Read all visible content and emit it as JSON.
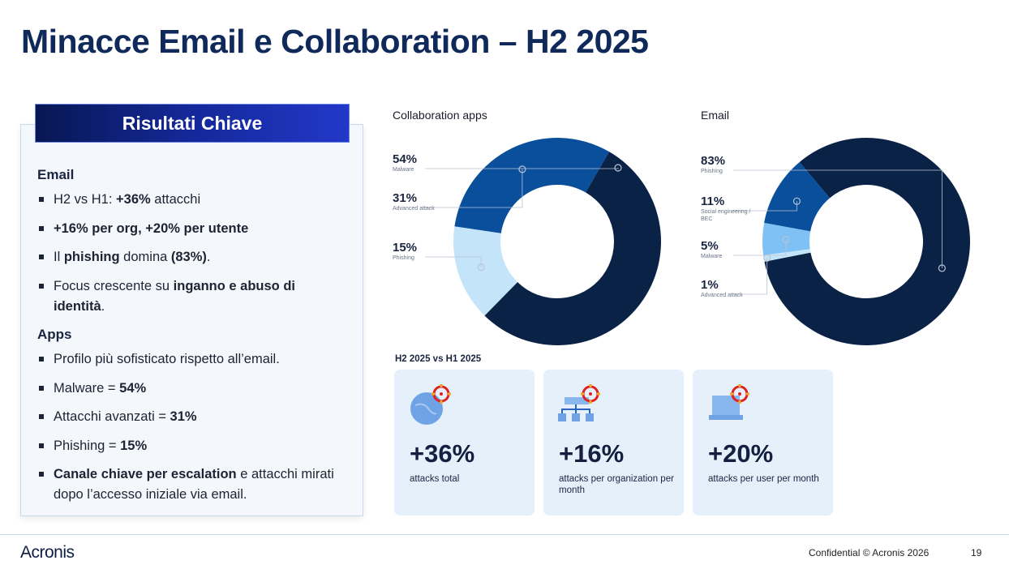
{
  "title": "Minacce Email e Collaboration – H2 2025",
  "panel": {
    "header": "Risultati Chiave",
    "sections": [
      {
        "heading": "Email",
        "items": [
          [
            [
              "H2 vs H1: ",
              false
            ],
            [
              "+36%",
              true
            ],
            [
              " attacchi",
              false
            ]
          ],
          [
            [
              "+16% per org, +20% per utente",
              true
            ]
          ],
          [
            [
              "Il ",
              false
            ],
            [
              "phishing",
              true
            ],
            [
              " domina ",
              false
            ],
            [
              "(83%)",
              true
            ],
            [
              ".",
              false
            ]
          ],
          [
            [
              "Focus crescente su ",
              false
            ],
            [
              "inganno e abuso di identità",
              true
            ],
            [
              ".",
              false
            ]
          ]
        ]
      },
      {
        "heading": "Apps",
        "items": [
          [
            [
              "Profilo più sofisticato rispetto all’email.",
              false
            ]
          ],
          [
            [
              "Malware = ",
              false
            ],
            [
              "54%",
              true
            ]
          ],
          [
            [
              "Attacchi avanzati = ",
              false
            ],
            [
              "31%",
              true
            ]
          ],
          [
            [
              "Phishing = ",
              false
            ],
            [
              "15%",
              true
            ]
          ],
          [
            [
              "Canale chiave per escalation",
              true
            ],
            [
              " e attacchi mirati dopo l’accesso iniziale via email.",
              false
            ]
          ]
        ]
      }
    ]
  },
  "chart_data": [
    {
      "type": "pie",
      "title": "Collaboration apps",
      "donut": true,
      "slices": [
        {
          "label": "Malware",
          "value": 54,
          "display": "54%",
          "color": "#0b2247"
        },
        {
          "label": "Phishing",
          "value": 15,
          "display": "15%",
          "color": "#c4e4fa"
        },
        {
          "label": "Advanced attack",
          "value": 31,
          "display": "31%",
          "color": "#0a4f9c"
        }
      ],
      "label_order": [
        0,
        2,
        1
      ]
    },
    {
      "type": "pie",
      "title": "Email",
      "donut": true,
      "slices": [
        {
          "label": "Phishing",
          "value": 83,
          "display": "83%",
          "color": "#0b2247"
        },
        {
          "label": "Advanced attack",
          "value": 1,
          "display": "1%",
          "color": "#c4e4fa"
        },
        {
          "label": "Malware",
          "value": 5,
          "display": "5%",
          "color": "#7fc0f5"
        },
        {
          "label": "Social engineering / BEC",
          "value": 11,
          "display": "11%",
          "color": "#0a4f9c"
        }
      ],
      "label_order": [
        0,
        3,
        2,
        1
      ]
    }
  ],
  "comparison": {
    "label": "H2 2025 vs H1 2025",
    "cards": [
      {
        "value": "+36%",
        "desc": "attacks total",
        "icon": "globe-target-icon"
      },
      {
        "value": "+16%",
        "desc": "attacks per organization per month",
        "icon": "org-chart-target-icon"
      },
      {
        "value": "+20%",
        "desc": "attacks per user per month",
        "icon": "laptop-target-icon"
      }
    ]
  },
  "footer": {
    "logo": "Acronis",
    "confidential": "Confidential © Acronis 2026",
    "page": "19"
  }
}
